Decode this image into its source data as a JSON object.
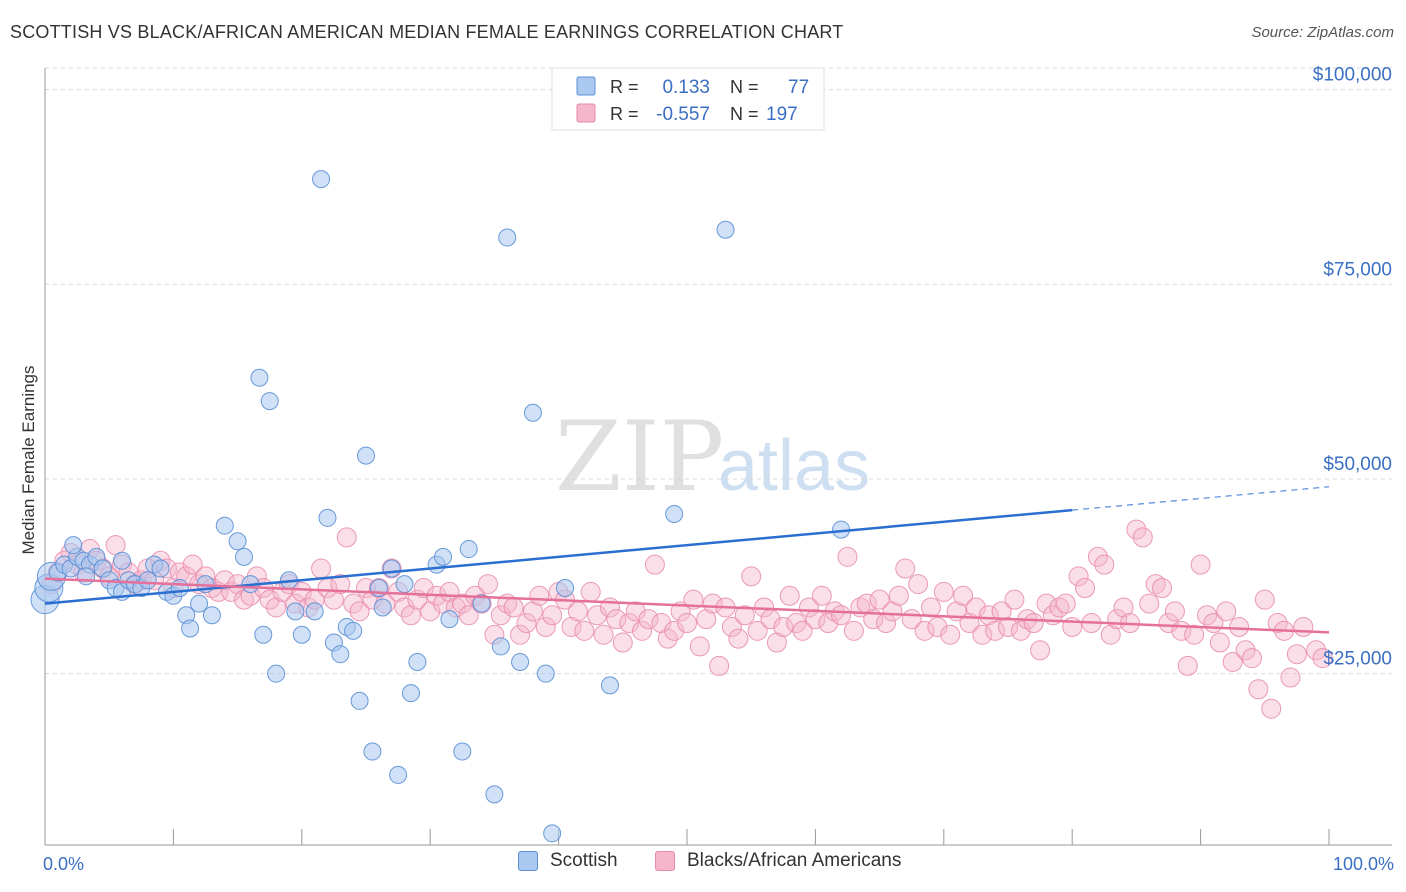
{
  "header": {
    "title": "SCOTTISH VS BLACK/AFRICAN AMERICAN MEDIAN FEMALE EARNINGS CORRELATION CHART",
    "source": "Source: ZipAtlas.com"
  },
  "watermark": {
    "zip": "ZIP",
    "atlas": "atlas"
  },
  "colors": {
    "scottish_fill": "#aac8f0",
    "scottish_stroke": "#5a8fd4",
    "scottish_line": "#2b6fd0",
    "black_fill": "#f5b5cb",
    "black_stroke": "#e88aac",
    "black_line": "#e5709a",
    "axis_label": "#3a6fc4",
    "grid": "#d8d8d8"
  },
  "legend_top": {
    "row1": {
      "r_label": "R =",
      "r_value": "0.133",
      "n_label": "N =",
      "n_value": "77"
    },
    "row2": {
      "r_label": "R =",
      "r_value": "-0.557",
      "n_label": "N =",
      "n_value": "197"
    }
  },
  "legend_bottom": {
    "scottish": "Scottish",
    "black": "Blacks/African Americans"
  },
  "chart_data": {
    "type": "scatter",
    "ylabel": "Median Female Earnings",
    "xlim": [
      0,
      100
    ],
    "ylim": [
      3000,
      102000
    ],
    "x_tick_labels": [
      "0.0%",
      "100.0%"
    ],
    "y_ticks": [
      {
        "value": 25000,
        "label": "$25,000"
      },
      {
        "value": 50000,
        "label": "$50,000"
      },
      {
        "value": 75000,
        "label": "$75,000"
      },
      {
        "value": 100000,
        "label": "$100,000"
      }
    ],
    "series": [
      {
        "name": "Scottish",
        "r": 0.133,
        "n": 77,
        "trend": {
          "x0": 0,
          "y0": 34000,
          "x1": 80,
          "y1": 46000,
          "dash_to_x": 100,
          "dash_to_y": 49000
        },
        "points": [
          [
            0,
            34500
          ],
          [
            0.3,
            36000
          ],
          [
            0.5,
            37500
          ],
          [
            1,
            38000
          ],
          [
            1.5,
            39000
          ],
          [
            2,
            38500
          ],
          [
            2.5,
            40000
          ],
          [
            3,
            39500
          ],
          [
            3.5,
            39000
          ],
          [
            4,
            40000
          ],
          [
            4.5,
            38500
          ],
          [
            5,
            37000
          ],
          [
            5.5,
            36000
          ],
          [
            6,
            35500
          ],
          [
            6.5,
            37000
          ],
          [
            7,
            36500
          ],
          [
            7.5,
            36000
          ],
          [
            8,
            37000
          ],
          [
            8.5,
            39000
          ],
          [
            9,
            38500
          ],
          [
            9.5,
            35500
          ],
          [
            10,
            35000
          ],
          [
            10.5,
            36000
          ],
          [
            11,
            32500
          ],
          [
            11.3,
            30800
          ],
          [
            12,
            34000
          ],
          [
            12.5,
            36500
          ],
          [
            13,
            32500
          ],
          [
            14,
            44000
          ],
          [
            15,
            42000
          ],
          [
            15.5,
            40000
          ],
          [
            16,
            36500
          ],
          [
            16.7,
            63000
          ],
          [
            17,
            30000
          ],
          [
            17.5,
            60000
          ],
          [
            18,
            25000
          ],
          [
            19,
            37000
          ],
          [
            19.5,
            33000
          ],
          [
            20,
            30000
          ],
          [
            21,
            33000
          ],
          [
            21.5,
            88500
          ],
          [
            22,
            45000
          ],
          [
            22.5,
            29000
          ],
          [
            23,
            27500
          ],
          [
            23.5,
            31000
          ],
          [
            24,
            30500
          ],
          [
            24.5,
            21500
          ],
          [
            25,
            53000
          ],
          [
            25.5,
            15000
          ],
          [
            26,
            36000
          ],
          [
            26.3,
            33500
          ],
          [
            27,
            38500
          ],
          [
            27.5,
            12000
          ],
          [
            28,
            36500
          ],
          [
            28.5,
            22500
          ],
          [
            29,
            26500
          ],
          [
            30.5,
            39000
          ],
          [
            31,
            40000
          ],
          [
            31.5,
            32000
          ],
          [
            32.5,
            15000
          ],
          [
            33,
            41000
          ],
          [
            34,
            34000
          ],
          [
            35,
            9500
          ],
          [
            35.5,
            28500
          ],
          [
            36,
            81000
          ],
          [
            37,
            26500
          ],
          [
            38,
            58500
          ],
          [
            39,
            25000
          ],
          [
            39.5,
            4500
          ],
          [
            40.5,
            36000
          ],
          [
            44,
            23500
          ],
          [
            49,
            45500
          ],
          [
            53,
            82000
          ],
          [
            62,
            43500
          ],
          [
            2.2,
            41500
          ],
          [
            3.2,
            37500
          ],
          [
            6,
            39500
          ]
        ]
      },
      {
        "name": "Blacks/African Americans",
        "r": -0.557,
        "n": 197,
        "trend": {
          "x0": 0,
          "y0": 37200,
          "x1": 100,
          "y1": 30300
        },
        "points": [
          [
            0.5,
            36500
          ],
          [
            1,
            38000
          ],
          [
            1.5,
            39500
          ],
          [
            2,
            40500
          ],
          [
            2.5,
            39000
          ],
          [
            3,
            38000
          ],
          [
            3.5,
            41000
          ],
          [
            4,
            39500
          ],
          [
            4.5,
            38500
          ],
          [
            5,
            37500
          ],
          [
            5.5,
            41500
          ],
          [
            6,
            39000
          ],
          [
            6.5,
            38000
          ],
          [
            7,
            36500
          ],
          [
            7.5,
            37000
          ],
          [
            8,
            38500
          ],
          [
            8.5,
            37000
          ],
          [
            9,
            39500
          ],
          [
            9.5,
            38500
          ],
          [
            10,
            36000
          ],
          [
            10.5,
            38000
          ],
          [
            11,
            37500
          ],
          [
            11.5,
            39000
          ],
          [
            12,
            36500
          ],
          [
            12.5,
            37500
          ],
          [
            13,
            36000
          ],
          [
            13.5,
            35500
          ],
          [
            14,
            37000
          ],
          [
            14.5,
            35500
          ],
          [
            15,
            36500
          ],
          [
            15.5,
            34500
          ],
          [
            16,
            35000
          ],
          [
            16.5,
            37500
          ],
          [
            17,
            36000
          ],
          [
            17.5,
            34500
          ],
          [
            18,
            33500
          ],
          [
            18.5,
            35500
          ],
          [
            19,
            36500
          ],
          [
            19.5,
            34000
          ],
          [
            20,
            35500
          ],
          [
            20.5,
            33500
          ],
          [
            21,
            34500
          ],
          [
            21.5,
            38500
          ],
          [
            22,
            36000
          ],
          [
            22.5,
            34500
          ],
          [
            23,
            36500
          ],
          [
            23.5,
            42500
          ],
          [
            24,
            34000
          ],
          [
            24.5,
            33000
          ],
          [
            25,
            36000
          ],
          [
            25.5,
            34500
          ],
          [
            26,
            36000
          ],
          [
            26.5,
            34000
          ],
          [
            27,
            38500
          ],
          [
            27.5,
            35500
          ],
          [
            28,
            33500
          ],
          [
            28.5,
            32500
          ],
          [
            29,
            34500
          ],
          [
            29.5,
            36000
          ],
          [
            30,
            33000
          ],
          [
            30.5,
            35000
          ],
          [
            31,
            34000
          ],
          [
            31.5,
            35500
          ],
          [
            32,
            33500
          ],
          [
            32.5,
            34000
          ],
          [
            33,
            32500
          ],
          [
            33.5,
            35000
          ],
          [
            34,
            34000
          ],
          [
            34.5,
            36500
          ],
          [
            35,
            30000
          ],
          [
            35.5,
            32500
          ],
          [
            36,
            34000
          ],
          [
            36.5,
            33500
          ],
          [
            37,
            30000
          ],
          [
            37.5,
            31500
          ],
          [
            38,
            33000
          ],
          [
            38.5,
            35000
          ],
          [
            39,
            31000
          ],
          [
            39.5,
            32500
          ],
          [
            40,
            35500
          ],
          [
            40.5,
            34500
          ],
          [
            41,
            31000
          ],
          [
            41.5,
            33000
          ],
          [
            42,
            30500
          ],
          [
            42.5,
            35500
          ],
          [
            43,
            32500
          ],
          [
            43.5,
            30000
          ],
          [
            44,
            33500
          ],
          [
            44.5,
            32000
          ],
          [
            45,
            29000
          ],
          [
            45.5,
            31500
          ],
          [
            46,
            33000
          ],
          [
            46.5,
            30500
          ],
          [
            47,
            32000
          ],
          [
            47.5,
            39000
          ],
          [
            48,
            31500
          ],
          [
            48.5,
            29500
          ],
          [
            49,
            30500
          ],
          [
            49.5,
            33000
          ],
          [
            50,
            31500
          ],
          [
            50.5,
            34500
          ],
          [
            51,
            28500
          ],
          [
            51.5,
            32000
          ],
          [
            52,
            34000
          ],
          [
            52.5,
            26000
          ],
          [
            53,
            33500
          ],
          [
            53.5,
            31000
          ],
          [
            54,
            29500
          ],
          [
            54.5,
            32500
          ],
          [
            55,
            37500
          ],
          [
            55.5,
            30500
          ],
          [
            56,
            33500
          ],
          [
            56.5,
            32000
          ],
          [
            57,
            29000
          ],
          [
            57.5,
            31000
          ],
          [
            58,
            35000
          ],
          [
            58.5,
            31500
          ],
          [
            59,
            30500
          ],
          [
            59.5,
            33500
          ],
          [
            60,
            32000
          ],
          [
            60.5,
            35000
          ],
          [
            61,
            31500
          ],
          [
            61.5,
            33000
          ],
          [
            62,
            32500
          ],
          [
            62.5,
            40000
          ],
          [
            63,
            30500
          ],
          [
            63.5,
            33500
          ],
          [
            64,
            34000
          ],
          [
            64.5,
            32000
          ],
          [
            65,
            34500
          ],
          [
            65.5,
            31500
          ],
          [
            66,
            33000
          ],
          [
            66.5,
            35000
          ],
          [
            67,
            38500
          ],
          [
            67.5,
            32000
          ],
          [
            68,
            36500
          ],
          [
            68.5,
            30500
          ],
          [
            69,
            33500
          ],
          [
            69.5,
            31000
          ],
          [
            70,
            35500
          ],
          [
            70.5,
            30000
          ],
          [
            71,
            33000
          ],
          [
            71.5,
            35000
          ],
          [
            72,
            31500
          ],
          [
            72.5,
            33500
          ],
          [
            73,
            30000
          ],
          [
            73.5,
            32500
          ],
          [
            74,
            30500
          ],
          [
            74.5,
            33000
          ],
          [
            75,
            31000
          ],
          [
            75.5,
            34500
          ],
          [
            76,
            30500
          ],
          [
            76.5,
            32000
          ],
          [
            77,
            31500
          ],
          [
            77.5,
            28000
          ],
          [
            78,
            34000
          ],
          [
            78.5,
            32500
          ],
          [
            79,
            33500
          ],
          [
            79.5,
            34000
          ],
          [
            80,
            31000
          ],
          [
            80.5,
            37500
          ],
          [
            81,
            36000
          ],
          [
            81.5,
            31500
          ],
          [
            82,
            40000
          ],
          [
            82.5,
            39000
          ],
          [
            83,
            30000
          ],
          [
            83.5,
            32000
          ],
          [
            84,
            33500
          ],
          [
            84.5,
            31500
          ],
          [
            85,
            43500
          ],
          [
            85.5,
            42500
          ],
          [
            86,
            34000
          ],
          [
            86.5,
            36500
          ],
          [
            87,
            36000
          ],
          [
            87.5,
            31500
          ],
          [
            88,
            33000
          ],
          [
            88.5,
            30500
          ],
          [
            89,
            26000
          ],
          [
            89.5,
            30000
          ],
          [
            90,
            39000
          ],
          [
            90.5,
            32500
          ],
          [
            91,
            31500
          ],
          [
            91.5,
            29000
          ],
          [
            92,
            33000
          ],
          [
            92.5,
            26500
          ],
          [
            93,
            31000
          ],
          [
            93.5,
            28000
          ],
          [
            94,
            27000
          ],
          [
            94.5,
            23000
          ],
          [
            95,
            34500
          ],
          [
            95.5,
            20500
          ],
          [
            96,
            31500
          ],
          [
            96.5,
            30500
          ],
          [
            97,
            24500
          ],
          [
            97.5,
            27500
          ],
          [
            98,
            31000
          ],
          [
            99,
            28000
          ],
          [
            99.5,
            27000
          ]
        ]
      }
    ]
  }
}
